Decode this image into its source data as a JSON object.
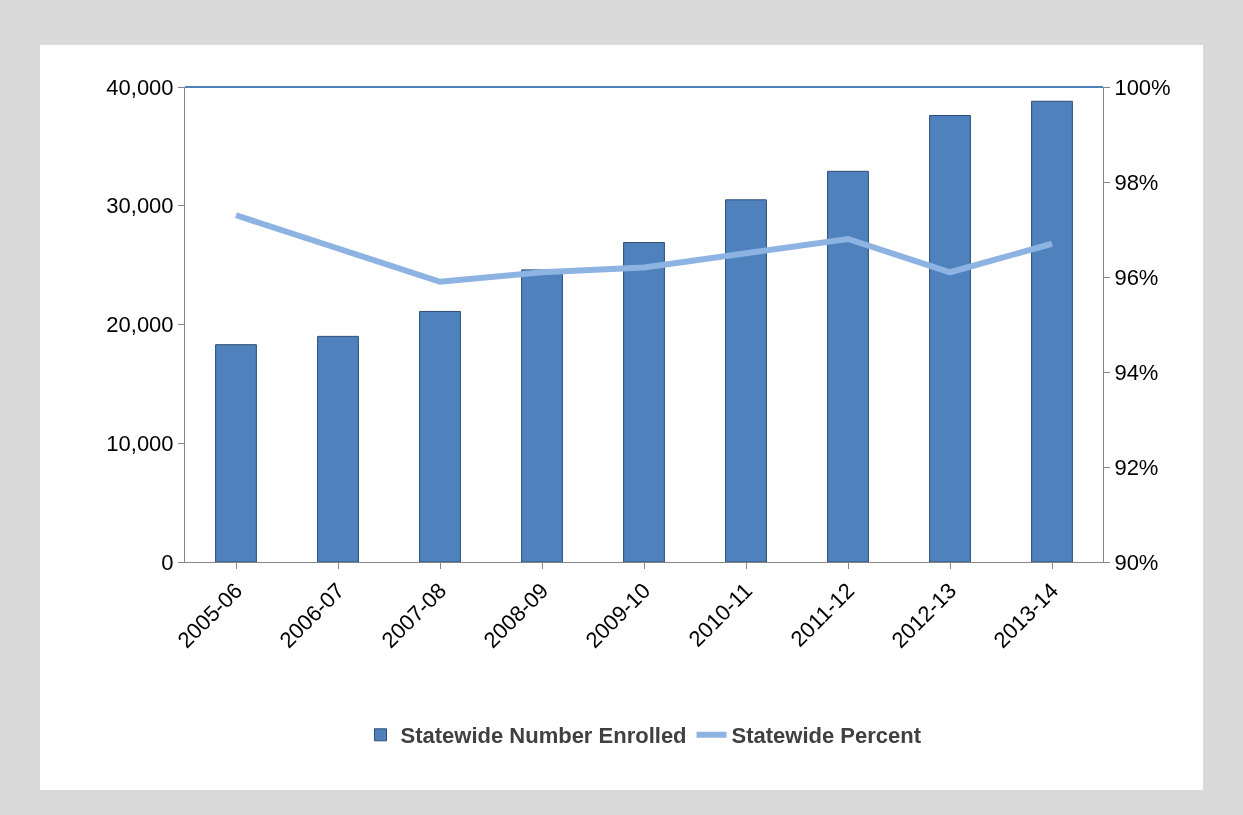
{
  "chart_data": {
    "type": "bar",
    "categories": [
      "2005-06",
      "2006-07",
      "2007-08",
      "2008-09",
      "2009-10",
      "2010-11",
      "2011-12",
      "2012-13",
      "2013-14"
    ],
    "series": [
      {
        "name": "Statewide Number Enrolled",
        "color": "#4f81bd",
        "values": [
          18300,
          19000,
          21100,
          24600,
          26900,
          30500,
          32900,
          37600,
          38800
        ]
      },
      {
        "name": "Statewide Percent",
        "type": "line",
        "axis": "y2",
        "color": "#8db3e2",
        "values": [
          97.3,
          96.6,
          95.9,
          96.1,
          96.2,
          96.5,
          96.8,
          96.1,
          96.7
        ]
      }
    ],
    "ylim": [
      0,
      40000
    ],
    "yticks": [
      0,
      {
        "value": 10000,
        "label": "10,000"
      },
      {
        "value": 20000,
        "label": "20,000"
      },
      {
        "value": 30000,
        "label": "30,000"
      },
      {
        "value": 40000,
        "label": "40,000"
      }
    ],
    "y2lim": [
      90,
      100
    ],
    "y2ticks": [
      {
        "value": 90,
        "label": "90%"
      },
      {
        "value": 92,
        "label": "92%"
      },
      {
        "value": 94,
        "label": "94%"
      },
      {
        "value": 96,
        "label": "96%"
      },
      {
        "value": 98,
        "label": "98%"
      },
      {
        "value": 100,
        "label": "100%"
      }
    ],
    "grid": false,
    "legend": "bottom",
    "marker": "none",
    "line_style": "solid"
  }
}
